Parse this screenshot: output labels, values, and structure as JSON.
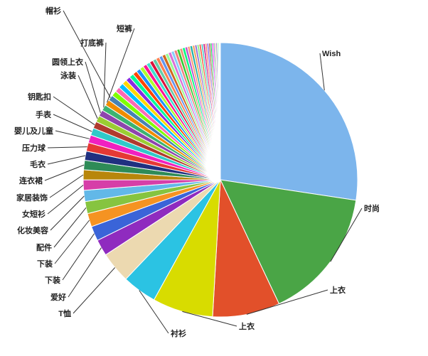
{
  "chart_data": {
    "type": "pie",
    "legend": "none",
    "background_color": "#ffffff",
    "label_color": "#222222",
    "connector_color": "#333333",
    "slices": [
      {
        "label": "Wish",
        "value": 26.9,
        "color": "#7cb5ec"
      },
      {
        "label": "时尚",
        "value": 15.3,
        "color": "#4aa546"
      },
      {
        "label": "上衣",
        "value": 7.8,
        "color": "#e2502a"
      },
      {
        "label": "上衣",
        "value": 7.0,
        "color": "#d8dc00"
      },
      {
        "label": "衬衫",
        "value": 4.0,
        "color": "#2bc3e3"
      },
      {
        "label": "T恤",
        "value": 3.6,
        "color": "#ecd9b0"
      },
      {
        "label": "爱好",
        "value": 1.9,
        "color": "#8f2bbf"
      },
      {
        "label": "下装",
        "value": 1.7,
        "color": "#3a64d8"
      },
      {
        "label": "下装",
        "value": 1.55,
        "color": "#f59322"
      },
      {
        "label": "配件",
        "value": 1.4,
        "color": "#86c440"
      },
      {
        "label": "化妆美容",
        "value": 1.3,
        "color": "#62b8e8"
      },
      {
        "label": "女短衫",
        "value": 1.2,
        "color": "#d63ea8"
      },
      {
        "label": "家居装饰",
        "value": 1.15,
        "color": "#b8860b"
      },
      {
        "label": "连衣裙",
        "value": 1.1,
        "color": "#2e8b57"
      },
      {
        "label": "毛衣",
        "value": 1.05,
        "color": "#203080"
      },
      {
        "label": "压力球",
        "value": 1.0,
        "color": "#e53935"
      },
      {
        "label": "婴儿及儿童",
        "value": 0.9,
        "color": "#f020c0"
      },
      {
        "label": "手表",
        "value": 0.85,
        "color": "#30c9c9"
      },
      {
        "label": "钥匙扣",
        "value": 0.8,
        "color": "#b03a2e"
      },
      {
        "label": "泳装",
        "value": 0.75,
        "color": "#9acd32"
      },
      {
        "label": "圆领上衣",
        "value": 0.72,
        "color": "#8e44ad"
      },
      {
        "label": "打底裤",
        "value": 0.7,
        "color": "#3cb371"
      },
      {
        "label": "短裤",
        "value": 0.68,
        "color": "#f08c00"
      },
      {
        "label": "帽衫",
        "value": 0.65,
        "color": "#4682b4"
      },
      {
        "label": "",
        "value": 0.62,
        "color": "#7fff00"
      },
      {
        "label": "",
        "value": 0.6,
        "color": "#ff69b4"
      },
      {
        "label": "",
        "value": 0.58,
        "color": "#00bfff"
      },
      {
        "label": "",
        "value": 0.56,
        "color": "#ffd700"
      },
      {
        "label": "",
        "value": 0.54,
        "color": "#8a2be2"
      },
      {
        "label": "",
        "value": 0.52,
        "color": "#00fa9a"
      },
      {
        "label": "",
        "value": 0.5,
        "color": "#ff4500"
      },
      {
        "label": "",
        "value": 0.48,
        "color": "#1e90ff"
      },
      {
        "label": "",
        "value": 0.46,
        "color": "#adff2f"
      },
      {
        "label": "",
        "value": 0.44,
        "color": "#ff1493"
      },
      {
        "label": "",
        "value": 0.43,
        "color": "#40e0d0"
      },
      {
        "label": "",
        "value": 0.42,
        "color": "#dc143c"
      },
      {
        "label": "",
        "value": 0.41,
        "color": "#66cdaa"
      },
      {
        "label": "",
        "value": 0.4,
        "color": "#ff7f50"
      },
      {
        "label": "",
        "value": 0.39,
        "color": "#6495ed"
      },
      {
        "label": "",
        "value": 0.38,
        "color": "#d2691e"
      },
      {
        "label": "",
        "value": 0.37,
        "color": "#98fb98"
      },
      {
        "label": "",
        "value": 0.36,
        "color": "#da70d6"
      },
      {
        "label": "",
        "value": 0.35,
        "color": "#87cefa"
      },
      {
        "label": "",
        "value": 0.34,
        "color": "#f08080"
      },
      {
        "label": "",
        "value": 0.33,
        "color": "#32cd32"
      },
      {
        "label": "",
        "value": 0.32,
        "color": "#e9967a"
      },
      {
        "label": "",
        "value": 0.31,
        "color": "#00ff7f"
      },
      {
        "label": "",
        "value": 0.3,
        "color": "#ba55d3"
      },
      {
        "label": "",
        "value": 0.29,
        "color": "#ffa07a"
      },
      {
        "label": "",
        "value": 0.28,
        "color": "#20b2aa"
      },
      {
        "label": "",
        "value": 0.27,
        "color": "#f4a460"
      },
      {
        "label": "",
        "value": 0.26,
        "color": "#9370db"
      },
      {
        "label": "",
        "value": 0.25,
        "color": "#90ee90"
      },
      {
        "label": "",
        "value": 0.24,
        "color": "#ff6347"
      },
      {
        "label": "",
        "value": 0.23,
        "color": "#48d1cc"
      },
      {
        "label": "",
        "value": 0.22,
        "color": "#c71585"
      },
      {
        "label": "",
        "value": 0.21,
        "color": "#fa8072"
      },
      {
        "label": "",
        "value": 0.2,
        "color": "#7b68ee"
      },
      {
        "label": "",
        "value": 0.19,
        "color": "#a0522d"
      },
      {
        "label": "",
        "value": 0.18,
        "color": "#00cc44"
      },
      {
        "label": "",
        "value": 0.17,
        "color": "#ff00ff"
      },
      {
        "label": "",
        "value": 0.16,
        "color": "#5f9ea0"
      },
      {
        "label": "",
        "value": 0.15,
        "color": "#deb887"
      },
      {
        "label": "",
        "value": 0.14,
        "color": "#6a5acd"
      },
      {
        "label": "",
        "value": 0.12,
        "color": "#7cfc00"
      },
      {
        "label": "",
        "value": 0.1,
        "color": "#00ffff"
      },
      {
        "label": "",
        "value": 0.08,
        "color": "#ffb6c1"
      },
      {
        "label": "",
        "value": 0.06,
        "color": "#008080"
      }
    ]
  }
}
